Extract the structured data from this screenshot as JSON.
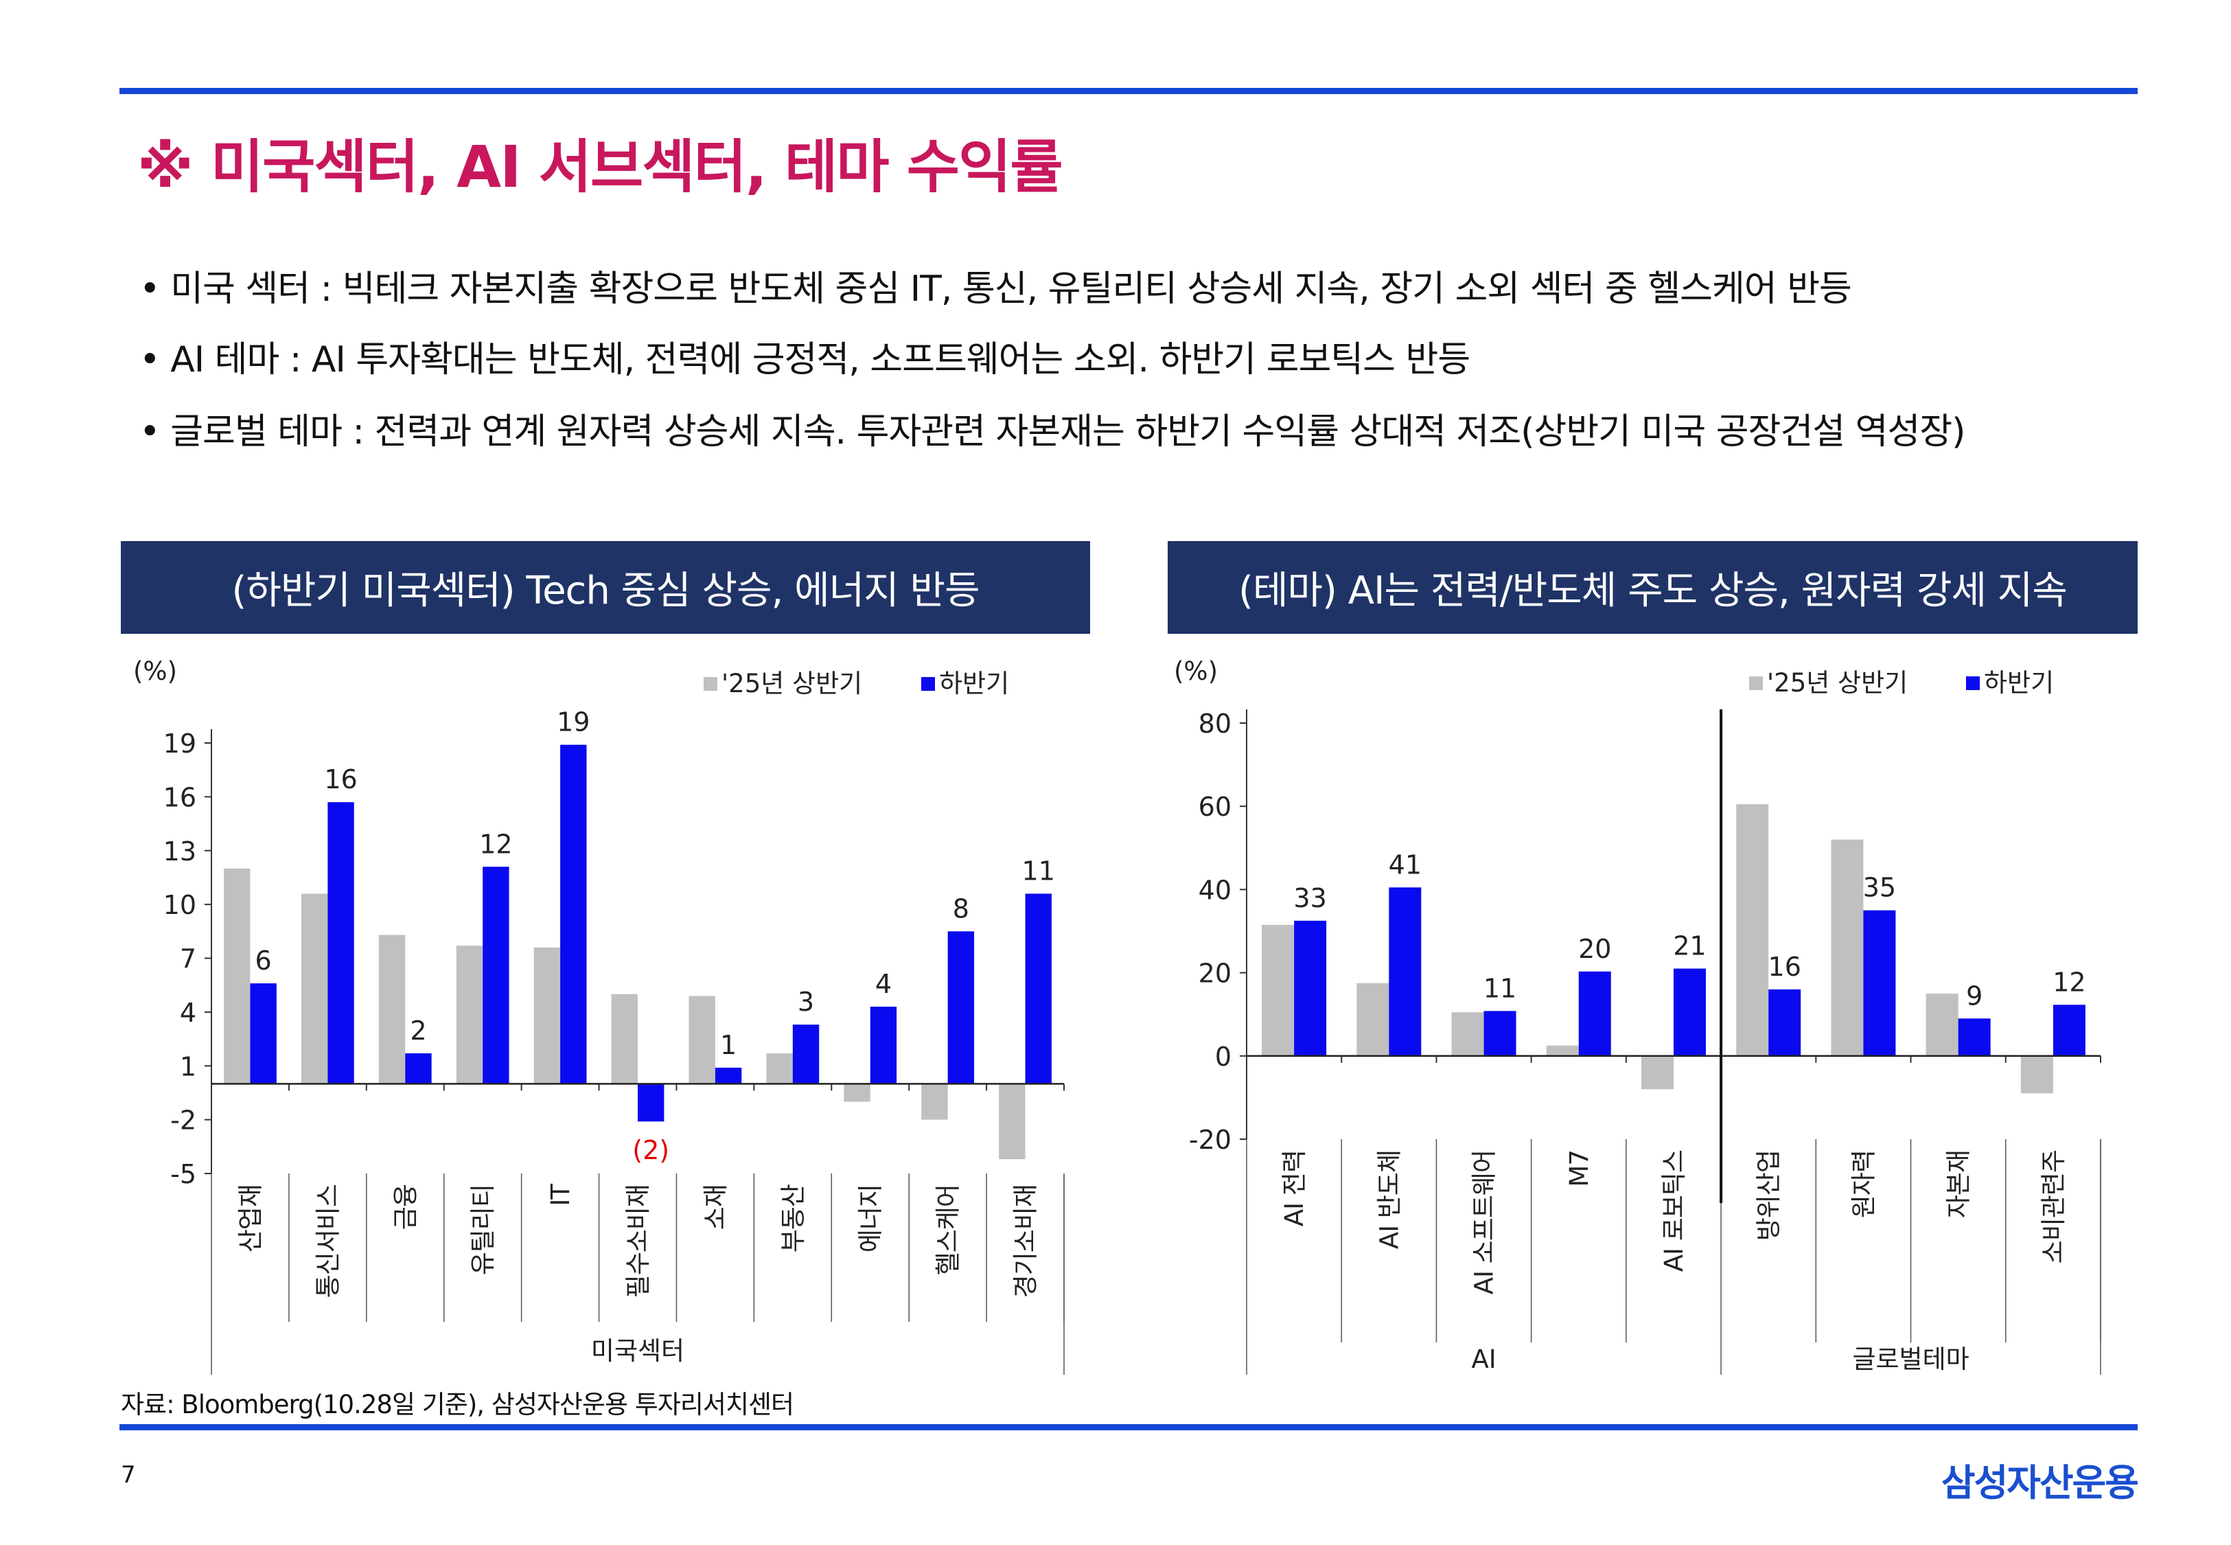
{
  "title": "※ 미국섹터, AI 서브섹터, 테마 수익률",
  "bullets": [
    "• 미국 섹터 : 빅테크 자본지출 확장으로 반도체 중심 IT, 통신, 유틸리티 상승세 지속, 장기 소외 섹터 중 헬스케어 반등",
    "• AI 테마 : AI 투자확대는 반도체, 전력에 긍정적, 소프트웨어는 소외. 하반기 로보틱스 반등",
    "• 글로벌 테마 : 전력과 연계 원자력 상승세 지속. 투자관련 자본재는 하반기 수익률 상대적 저조(상반기 미국 공장건설 역성장)"
  ],
  "panels": {
    "left_header": "(하반기 미국섹터) Tech 중심 상승, 에너지 반등",
    "right_header": "(테마) AI는 전력/반도체 주도 상승, 원자력 강세 지속"
  },
  "colors": {
    "series1": "#c0c0c0",
    "series2": "#0a0af0",
    "negative_label": "#e00000",
    "title": "#c8175d",
    "header_bg": "#1f3366",
    "rule": "#1547d6"
  },
  "chart_data": [
    {
      "type": "bar",
      "unit_label": "(%)",
      "ylim": [
        -5,
        20
      ],
      "yticks": [
        19,
        16,
        13,
        10,
        7,
        4,
        1,
        -2,
        -5
      ],
      "categories": [
        "산업재",
        "통신서비스",
        "금융",
        "유틸리티",
        "IT",
        "필수소비재",
        "소재",
        "부동산",
        "에너지",
        "헬스케어",
        "경기소비재"
      ],
      "groups": [
        {
          "label": "미국섹터",
          "count": 11
        }
      ],
      "series": [
        {
          "name": "'25년 상반기",
          "values": [
            12.0,
            10.6,
            8.3,
            7.7,
            7.6,
            5.0,
            4.9,
            1.7,
            -1.0,
            -2.0,
            -4.2
          ]
        },
        {
          "name": "하반기",
          "values": [
            5.6,
            15.7,
            1.7,
            12.1,
            18.9,
            -2.1,
            0.9,
            3.3,
            4.3,
            8.5,
            10.6
          ]
        }
      ],
      "data_labels": [
        "6",
        "16",
        "2",
        "12",
        "19",
        "(2)",
        "1",
        "3",
        "4",
        "8",
        "11"
      ],
      "legend": "top-right"
    },
    {
      "type": "bar",
      "unit_label": "(%)",
      "ylim": [
        -20,
        80
      ],
      "yticks": [
        80,
        60,
        40,
        20,
        0,
        -20
      ],
      "categories": [
        "AI 전력",
        "AI 반도체",
        "AI 소프트웨어",
        "M7",
        "AI 로보틱스",
        "방위산업",
        "원자력",
        "자본재",
        "소비관련주"
      ],
      "groups": [
        {
          "label": "AI",
          "count": 5
        },
        {
          "label": "글로벌테마",
          "count": 4
        }
      ],
      "series": [
        {
          "name": "'25년 상반기",
          "values": [
            31.5,
            17.5,
            10.5,
            2.5,
            -8.0,
            60.5,
            52.0,
            15.0,
            -9.0
          ]
        },
        {
          "name": "하반기",
          "values": [
            32.5,
            40.5,
            10.8,
            20.3,
            21.0,
            16.0,
            35.0,
            9.0,
            12.3
          ]
        }
      ],
      "data_labels": [
        "33",
        "41",
        "11",
        "20",
        "21",
        "16",
        "35",
        "9",
        "12"
      ],
      "legend": "top-right"
    }
  ],
  "footer": {
    "source": "자료: Bloomberg(10.28일 기준), 삼성자산운용 투자리서치센터",
    "page_number": "7",
    "logo": "삼성자산운용"
  }
}
